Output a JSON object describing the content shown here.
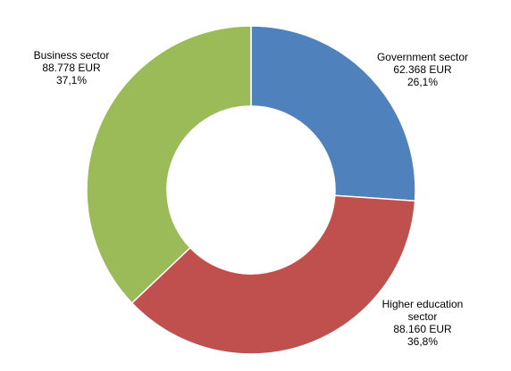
{
  "chart_data": {
    "type": "pie",
    "style": "donut",
    "title": "",
    "legend": "none",
    "slices": [
      {
        "name": "Government sector",
        "value": 62368,
        "value_label": "62.368 EUR",
        "percent_label": "26,1%",
        "color": "#4F81BD"
      },
      {
        "name": "Higher education sector",
        "value": 88160,
        "value_label": "88.160 EUR",
        "percent_label": "36,8%",
        "color": "#C0504D"
      },
      {
        "name": "Business sector",
        "value": 88778,
        "value_label": "88.778 EUR",
        "percent_label": "37,1%",
        "color": "#9BBB59"
      }
    ]
  },
  "labels": [
    {
      "name_lines": [
        "Government sector"
      ],
      "value": "62.368 EUR",
      "percent": "26,1%"
    },
    {
      "name_lines": [
        "Higher education",
        "sector"
      ],
      "value": "88.160 EUR",
      "percent": "36,8%"
    },
    {
      "name_lines": [
        "Business sector"
      ],
      "value": "88.778 EUR",
      "percent": "37,1%"
    }
  ]
}
